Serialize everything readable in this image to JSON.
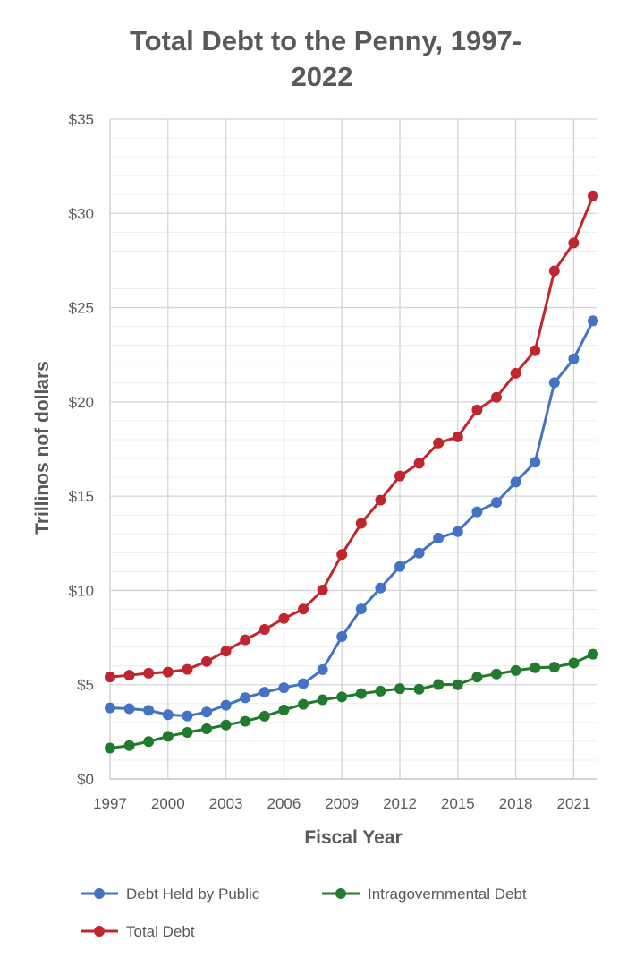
{
  "chart_data": {
    "type": "line",
    "title_lines": [
      "Total Debt to the Penny, 1997-",
      "2022"
    ],
    "xlabel": "Fiscal Year",
    "ylabel": "Trillinos nof dollars",
    "x": [
      1997,
      1998,
      1999,
      2000,
      2001,
      2002,
      2003,
      2004,
      2005,
      2006,
      2007,
      2008,
      2009,
      2010,
      2011,
      2012,
      2013,
      2014,
      2015,
      2016,
      2017,
      2018,
      2019,
      2020,
      2021,
      2022
    ],
    "xticks": [
      "1997",
      "2000",
      "2003",
      "2006",
      "2009",
      "2012",
      "2015",
      "2018",
      "2021"
    ],
    "yticks": [
      "$0",
      "$5",
      "$10",
      "$15",
      "$20",
      "$25",
      "$30",
      "$35"
    ],
    "ylim": [
      0,
      35
    ],
    "grid": true,
    "legend_position": "bottom",
    "series": [
      {
        "name": "Debt Held by Public",
        "color": "#4472C4",
        "values": [
          3.77,
          3.73,
          3.64,
          3.41,
          3.34,
          3.55,
          3.91,
          4.31,
          4.6,
          4.84,
          5.05,
          5.8,
          7.55,
          9.02,
          10.13,
          11.27,
          11.98,
          12.78,
          13.12,
          14.17,
          14.67,
          15.75,
          16.8,
          21.02,
          22.28,
          24.3
        ]
      },
      {
        "name": "Intragovernmental Debt",
        "color": "#217A2E",
        "values": [
          1.64,
          1.77,
          1.98,
          2.26,
          2.47,
          2.66,
          2.86,
          3.06,
          3.33,
          3.66,
          3.96,
          4.2,
          4.35,
          4.53,
          4.66,
          4.79,
          4.76,
          5.01,
          5.0,
          5.4,
          5.57,
          5.75,
          5.9,
          5.93,
          6.15,
          6.62
        ]
      },
      {
        "name": "Total Debt",
        "color": "#C0262D",
        "values": [
          5.41,
          5.5,
          5.61,
          5.67,
          5.81,
          6.23,
          6.78,
          7.38,
          7.93,
          8.51,
          9.01,
          10.02,
          11.91,
          13.56,
          14.79,
          16.07,
          16.74,
          17.82,
          18.15,
          19.57,
          20.24,
          21.52,
          22.72,
          26.95,
          28.43,
          30.93
        ]
      }
    ]
  }
}
